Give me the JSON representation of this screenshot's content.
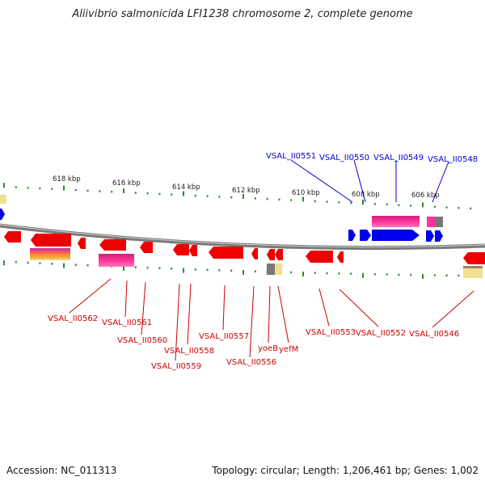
{
  "title": "Aliivibrio salmonicida LFI1238 chromosome 2, complete genome",
  "footer": {
    "accession": "Accession: NC_011313",
    "topology": "Topology: circular; Length: 1,206,461 bp; Genes: 1,002"
  },
  "colors": {
    "backbone": "#7a7a7a",
    "tick": "#2e8b2e",
    "gene_forward": "#0000ee",
    "gene_reverse": "#ee0000",
    "label_forward": "#0000cc",
    "label_reverse": "#cc0000",
    "domain_pink": "#ff3399",
    "domain_yellow": "#f0e090",
    "domain_gray": "#777777"
  },
  "kbp_labels": [
    "618 kbp",
    "616 kbp",
    "614 kbp",
    "612 kbp",
    "610 kbp",
    "608 kbp",
    "606 kbp"
  ],
  "forward_labels": [
    "VSAL_II0551",
    "VSAL_II0550",
    "VSAL_II0549",
    "VSAL_II0548"
  ],
  "reverse_labels": [
    "VSAL_II0562",
    "VSAL_II0561",
    "VSAL_II0560",
    "VSAL_II0558",
    "VSAL_II0559",
    "VSAL_II0557",
    "VSAL_II0556",
    "yoeB",
    "yefM",
    "VSAL_II0553",
    "VSAL_II0552",
    "VSAL_II0546"
  ]
}
